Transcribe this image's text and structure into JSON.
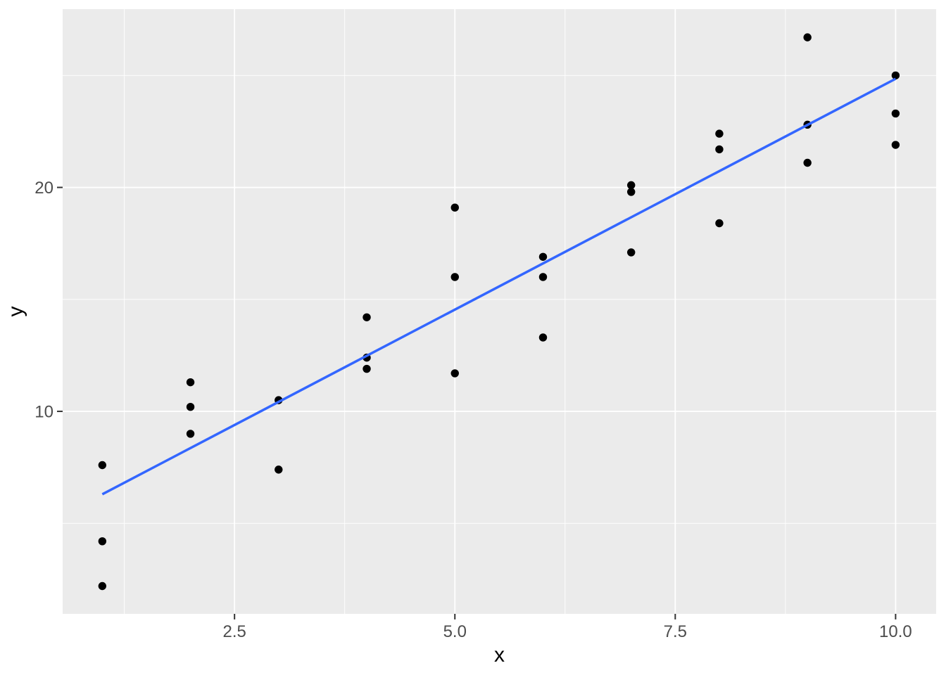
{
  "figure": {
    "background_color": "#FFFFFF",
    "panel_color": "#EBEBEB",
    "gridline_color": "#FFFFFF",
    "tick_mark_color": "#333333",
    "tick_label_color": "#4D4D4D",
    "axis_title_color": "#000000",
    "point_color": "#000000"
  },
  "chart_data": {
    "type": "scatter",
    "title": "",
    "xlabel": "x",
    "ylabel": "y",
    "xlim": [
      0.55,
      10.46
    ],
    "ylim": [
      0.96,
      27.96
    ],
    "grid": true,
    "legend_position": "none",
    "x_major_ticks": [
      {
        "value": 2.5,
        "label": "2.5"
      },
      {
        "value": 5.0,
        "label": "5.0"
      },
      {
        "value": 7.5,
        "label": "7.5"
      },
      {
        "value": 10.0,
        "label": "10.0"
      }
    ],
    "y_major_ticks": [
      {
        "value": 10,
        "label": "10"
      },
      {
        "value": 20,
        "label": "20"
      }
    ],
    "x_minor_gridlines": [
      1.25,
      3.75,
      6.25,
      8.75
    ],
    "y_minor_gridlines": [
      5,
      15,
      25
    ],
    "points": [
      [
        1,
        7.6
      ],
      [
        1,
        4.2
      ],
      [
        1,
        2.2
      ],
      [
        2,
        11.3
      ],
      [
        2,
        10.2
      ],
      [
        2,
        9.0
      ],
      [
        3,
        10.5
      ],
      [
        3,
        7.4
      ],
      [
        4,
        14.2
      ],
      [
        4,
        12.4
      ],
      [
        4,
        11.9
      ],
      [
        5,
        19.1
      ],
      [
        5,
        16.0
      ],
      [
        5,
        11.7
      ],
      [
        6,
        16.9
      ],
      [
        6,
        16.0
      ],
      [
        6,
        13.3
      ],
      [
        7,
        20.1
      ],
      [
        7,
        19.8
      ],
      [
        7,
        17.1
      ],
      [
        8,
        22.4
      ],
      [
        8,
        21.7
      ],
      [
        8,
        18.4
      ],
      [
        9,
        26.7
      ],
      [
        9,
        22.8
      ],
      [
        9,
        21.1
      ],
      [
        10,
        25.0
      ],
      [
        10,
        23.3
      ],
      [
        10,
        21.9
      ]
    ],
    "smooth_line": {
      "fit": "linear",
      "x_start": 1.0,
      "y_start": 6.3,
      "x_end": 10.0,
      "y_end": 24.85,
      "color": "#3366FF"
    }
  }
}
